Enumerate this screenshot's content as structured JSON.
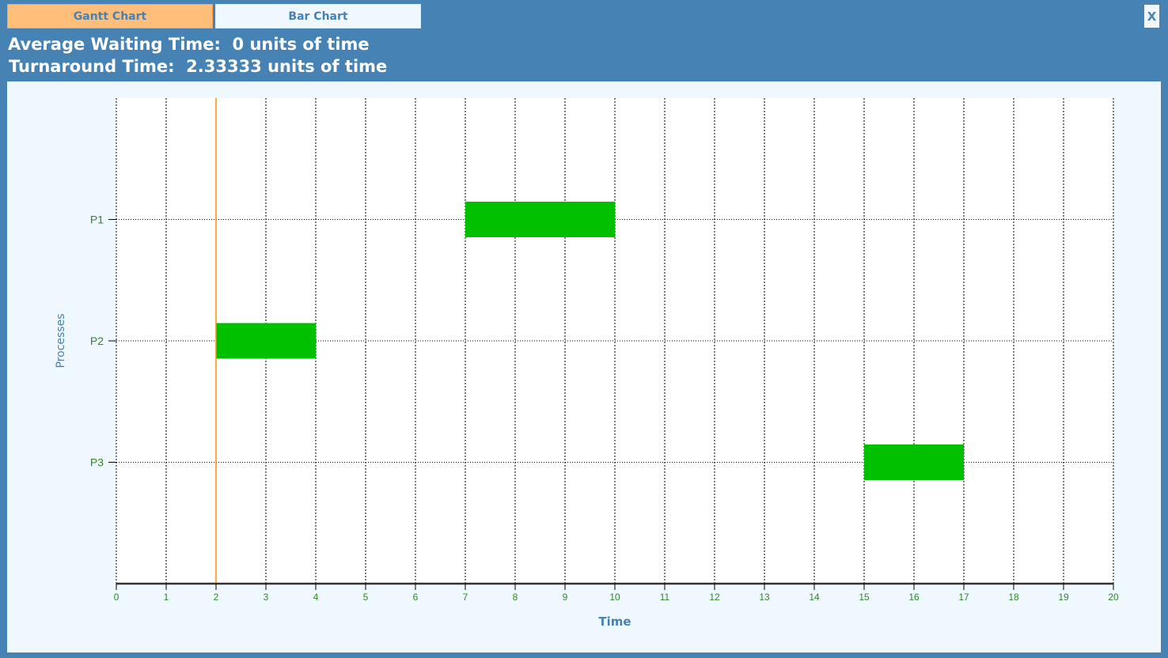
{
  "tabs": [
    {
      "label": "Gantt Chart",
      "active": true
    },
    {
      "label": "Bar Chart",
      "active": false
    }
  ],
  "close_label": "X",
  "stats": {
    "average_waiting_time": "Average Waiting Time:  0 units of time",
    "turnaround_time": "Turnaround Time:  2.33333 units of time"
  },
  "colors": {
    "accent": "#4682b4",
    "active_tab": "#ffbe7a",
    "bar": "#00c000",
    "marker": "#ff8c00",
    "axis_text": "#2e8b22",
    "axis_title": "#4682b4"
  },
  "chart_data": {
    "type": "gantt",
    "xlabel": "Time",
    "ylabel": "Processes",
    "xlim": [
      0,
      20
    ],
    "x_ticks": [
      0,
      1,
      2,
      3,
      4,
      5,
      6,
      7,
      8,
      9,
      10,
      11,
      12,
      13,
      14,
      15,
      16,
      17,
      18,
      19,
      20
    ],
    "categories": [
      "P1",
      "P2",
      "P3"
    ],
    "bars": [
      {
        "process": "P1",
        "start": 7,
        "end": 10
      },
      {
        "process": "P2",
        "start": 2,
        "end": 4
      },
      {
        "process": "P3",
        "start": 15,
        "end": 17
      }
    ],
    "marker_x": 2,
    "grid": true
  }
}
